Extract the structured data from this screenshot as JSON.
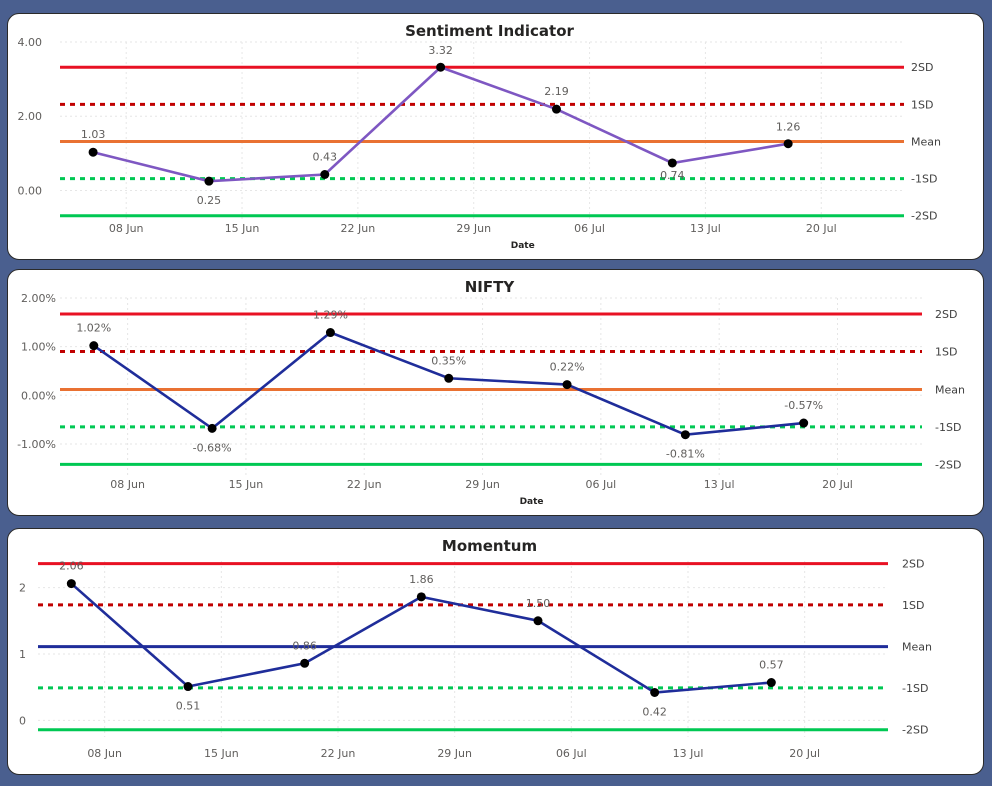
{
  "chart_data": [
    {
      "type": "line",
      "title": "Sentiment Indicator",
      "xlabel": "Date",
      "ylabel": "",
      "x_ticks": [
        "08 Jun",
        "15 Jun",
        "22 Jun",
        "29 Jun",
        "06 Jul",
        "13 Jul",
        "20 Jul"
      ],
      "y_ticks": [
        "0.00",
        "2.00",
        "4.00"
      ],
      "ylim": [
        -0.85,
        4.0
      ],
      "series": [
        {
          "color": "#7e57c2",
          "x": [
            "2025-06-06",
            "2025-06-13",
            "2025-06-20",
            "2025-06-27",
            "2025-07-04",
            "2025-07-11",
            "2025-07-18"
          ],
          "values": [
            1.03,
            0.25,
            0.43,
            3.32,
            2.19,
            0.74,
            1.26
          ],
          "labels": [
            "1.03",
            "0.25",
            "0.43",
            "3.32",
            "2.19",
            "0.74",
            "1.26"
          ]
        }
      ],
      "reference_lines": [
        {
          "label": "2SD",
          "value": 3.32,
          "color": "#e81123",
          "style": "solid"
        },
        {
          "label": "1SD",
          "value": 2.32,
          "color": "#c00000",
          "style": "dotted"
        },
        {
          "label": "Mean",
          "value": 1.32,
          "color": "#e97132",
          "style": "solid"
        },
        {
          "label": "-1SD",
          "value": 0.32,
          "color": "#00c853",
          "style": "dotted"
        },
        {
          "label": "-2SD",
          "value": -0.68,
          "color": "#00c853",
          "style": "solid"
        }
      ]
    },
    {
      "type": "line",
      "title": "NIFTY",
      "xlabel": "Date",
      "ylabel": "",
      "x_ticks": [
        "08 Jun",
        "15 Jun",
        "22 Jun",
        "29 Jun",
        "06 Jul",
        "13 Jul",
        "20 Jul"
      ],
      "y_ticks": [
        "-1.00%",
        "0.00%",
        "1.00%",
        "2.00%"
      ],
      "ylim": [
        -1.7,
        2.0
      ],
      "series": [
        {
          "color": "#1f2d9a",
          "x": [
            "2025-06-06",
            "2025-06-13",
            "2025-06-20",
            "2025-06-27",
            "2025-07-04",
            "2025-07-11",
            "2025-07-18"
          ],
          "values": [
            1.02,
            -0.68,
            1.29,
            0.35,
            0.22,
            -0.81,
            -0.57
          ],
          "labels": [
            "1.02%",
            "-0.68%",
            "1.29%",
            "0.35%",
            "0.22%",
            "-0.81%",
            "-0.57%"
          ]
        }
      ],
      "reference_lines": [
        {
          "label": "2SD",
          "value": 1.67,
          "color": "#e81123",
          "style": "solid"
        },
        {
          "label": "1SD",
          "value": 0.9,
          "color": "#c00000",
          "style": "dotted"
        },
        {
          "label": "Mean",
          "value": 0.12,
          "color": "#e97132",
          "style": "solid"
        },
        {
          "label": "-1SD",
          "value": -0.65,
          "color": "#00c853",
          "style": "dotted"
        },
        {
          "label": "-2SD",
          "value": -1.42,
          "color": "#00c853",
          "style": "solid"
        }
      ]
    },
    {
      "type": "line",
      "title": "Momentum",
      "xlabel": "",
      "ylabel": "",
      "x_ticks": [
        "08 Jun",
        "15 Jun",
        "22 Jun",
        "29 Jun",
        "06 Jul",
        "13 Jul",
        "20 Jul"
      ],
      "y_ticks": [
        "0",
        "1",
        "2"
      ],
      "ylim": [
        -0.25,
        2.4
      ],
      "series": [
        {
          "color": "#1f2d9a",
          "x": [
            "2025-06-06",
            "2025-06-13",
            "2025-06-20",
            "2025-06-27",
            "2025-07-04",
            "2025-07-11",
            "2025-07-18"
          ],
          "values": [
            2.06,
            0.51,
            0.86,
            1.86,
            1.5,
            0.42,
            0.57
          ],
          "labels": [
            "2.06",
            "0.51",
            "0.86",
            "1.86",
            "1.50",
            "0.42",
            "0.57"
          ]
        }
      ],
      "reference_lines": [
        {
          "label": "2SD",
          "value": 2.36,
          "color": "#e81123",
          "style": "solid"
        },
        {
          "label": "1SD",
          "value": 1.74,
          "color": "#c00000",
          "style": "dotted"
        },
        {
          "label": "Mean",
          "value": 1.11,
          "color": "#1f2d9a",
          "style": "solid"
        },
        {
          "label": "-1SD",
          "value": 0.49,
          "color": "#00c853",
          "style": "dotted"
        },
        {
          "label": "-2SD",
          "value": -0.14,
          "color": "#00c853",
          "style": "solid"
        }
      ]
    }
  ]
}
